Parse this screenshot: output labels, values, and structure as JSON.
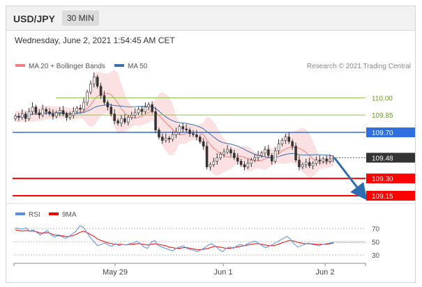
{
  "header": {
    "symbol": "USD/JPY",
    "timeframe": "30 MIN"
  },
  "datetime": "Wednesday, June 2, 2021 1:54:45 AM CET",
  "legend": {
    "ma20_label": "MA 20 + Bollinger Bands",
    "ma50_label": "MA 50",
    "credit": "Research © 2021 Trading Central",
    "rsi_label": "RSI",
    "ma9_label": "9MA"
  },
  "colors": {
    "ma20": "#f08080",
    "ma50": "#3a6fb0",
    "bands": "#fadada",
    "support": "#ff0000",
    "resistance_blue": "#2f6fe0",
    "target_green": "#8cc63f",
    "current": "#333333",
    "arrow": "#2e6db0",
    "rsi": "#5b8ee6",
    "rsi_ma": "#ff0000"
  },
  "chart_data": [
    {
      "type": "candlestick",
      "x_ticks": [
        "May 29",
        "Jun 1",
        "Jun 2"
      ],
      "ylim": [
        109.1,
        110.2
      ],
      "levels": [
        {
          "value": 110.0,
          "label": "110.00",
          "kind": "target"
        },
        {
          "value": 109.85,
          "label": "109.85",
          "kind": "target"
        },
        {
          "value": 109.7,
          "label": "109.70",
          "kind": "pivot"
        },
        {
          "value": 109.48,
          "label": "109.48",
          "kind": "current"
        },
        {
          "value": 109.3,
          "label": "109.30",
          "kind": "support"
        },
        {
          "value": 109.15,
          "label": "109.15",
          "kind": "support"
        }
      ],
      "close": [
        109.84,
        109.83,
        109.86,
        109.82,
        109.88,
        109.92,
        109.87,
        109.85,
        109.9,
        109.88,
        109.86,
        109.84,
        109.87,
        109.89,
        109.86,
        109.83,
        109.85,
        109.88,
        109.91,
        109.9,
        109.96,
        110.05,
        110.12,
        110.18,
        110.1,
        110.02,
        109.96,
        109.92,
        109.86,
        109.8,
        109.78,
        109.82,
        109.79,
        109.83,
        109.85,
        109.87,
        109.9,
        109.88,
        109.92,
        109.94,
        109.88,
        109.72,
        109.66,
        109.63,
        109.65,
        109.64,
        109.68,
        109.7,
        109.75,
        109.73,
        109.72,
        109.69,
        109.68,
        109.66,
        109.62,
        109.58,
        109.4,
        109.42,
        109.45,
        109.48,
        109.51,
        109.53,
        109.55,
        109.52,
        109.48,
        109.45,
        109.42,
        109.4,
        109.43,
        109.46,
        109.48,
        109.5,
        109.52,
        109.55,
        109.5,
        109.45,
        109.54,
        109.6,
        109.63,
        109.66,
        109.62,
        109.58,
        109.46,
        109.4,
        109.42,
        109.44,
        109.41,
        109.43,
        109.46,
        109.45,
        109.47,
        109.45,
        109.47,
        109.48
      ]
    },
    {
      "type": "line",
      "name": "RSI",
      "yticks": [
        30,
        50,
        70
      ],
      "ylim": [
        25,
        80
      ],
      "rsi": [
        71,
        70,
        69,
        71,
        66,
        68,
        64,
        60,
        64,
        67,
        60,
        57,
        59,
        58,
        55,
        58,
        62,
        66,
        74,
        72,
        64,
        56,
        50,
        44,
        46,
        48,
        45,
        43,
        47,
        44,
        46,
        45,
        47,
        48,
        51,
        47,
        42,
        40,
        49,
        52,
        44,
        42,
        40,
        38,
        36,
        40,
        42,
        44,
        40,
        38,
        37,
        35,
        38,
        41,
        45,
        47,
        43,
        38,
        35,
        40,
        42,
        40,
        44,
        46,
        44,
        47,
        49,
        51,
        48,
        44,
        41,
        43,
        46,
        49,
        52,
        55,
        58,
        54,
        47,
        42,
        44,
        46,
        48,
        46,
        45,
        44,
        46,
        47,
        48,
        49
      ],
      "rsi_ma": [
        68,
        67,
        66,
        67,
        66,
        66,
        65,
        63,
        63,
        64,
        62,
        60,
        60,
        59,
        58,
        58,
        59,
        61,
        64,
        66,
        64,
        61,
        58,
        54,
        52,
        50,
        48,
        47,
        46,
        46,
        46,
        45,
        46,
        46,
        47,
        47,
        46,
        45,
        46,
        47,
        46,
        45,
        44,
        42,
        41,
        40,
        40,
        41,
        41,
        40,
        39,
        38,
        38,
        39,
        40,
        42,
        43,
        42,
        41,
        40,
        40,
        41,
        42,
        43,
        44,
        45,
        46,
        47,
        47,
        46,
        45,
        44,
        44,
        45,
        47,
        49,
        51,
        52,
        51,
        49,
        48,
        47,
        47,
        47,
        46,
        46,
        46,
        46,
        47,
        48
      ]
    }
  ]
}
